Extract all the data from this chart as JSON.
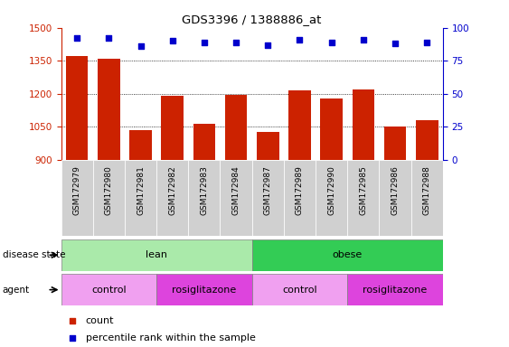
{
  "title": "GDS3396 / 1388886_at",
  "samples": [
    "GSM172979",
    "GSM172980",
    "GSM172981",
    "GSM172982",
    "GSM172983",
    "GSM172984",
    "GSM172987",
    "GSM172989",
    "GSM172990",
    "GSM172985",
    "GSM172986",
    "GSM172988"
  ],
  "counts": [
    1370,
    1358,
    1035,
    1190,
    1065,
    1193,
    1025,
    1215,
    1180,
    1220,
    1050,
    1078
  ],
  "percentile_ranks": [
    92,
    92,
    86,
    90,
    89,
    89,
    87,
    91,
    89,
    91,
    88,
    89
  ],
  "ylim_left": [
    900,
    1500
  ],
  "ylim_right": [
    0,
    100
  ],
  "yticks_left": [
    900,
    1050,
    1200,
    1350,
    1500
  ],
  "yticks_right": [
    0,
    25,
    50,
    75,
    100
  ],
  "bar_color": "#cc2200",
  "dot_color": "#0000cc",
  "tick_bg_color": "#d0d0d0",
  "disease_state_groups": [
    {
      "label": "lean",
      "start": 0,
      "end": 6,
      "color": "#aaeaaa"
    },
    {
      "label": "obese",
      "start": 6,
      "end": 12,
      "color": "#33cc55"
    }
  ],
  "agent_groups": [
    {
      "label": "control",
      "start": 0,
      "end": 3,
      "color": "#f0a0f0"
    },
    {
      "label": "rosiglitazone",
      "start": 3,
      "end": 6,
      "color": "#dd44dd"
    },
    {
      "label": "control",
      "start": 6,
      "end": 9,
      "color": "#f0a0f0"
    },
    {
      "label": "rosiglitazone",
      "start": 9,
      "end": 12,
      "color": "#dd44dd"
    }
  ],
  "legend_items": [
    {
      "label": "count",
      "color": "#cc2200"
    },
    {
      "label": "percentile rank within the sample",
      "color": "#0000cc"
    }
  ]
}
